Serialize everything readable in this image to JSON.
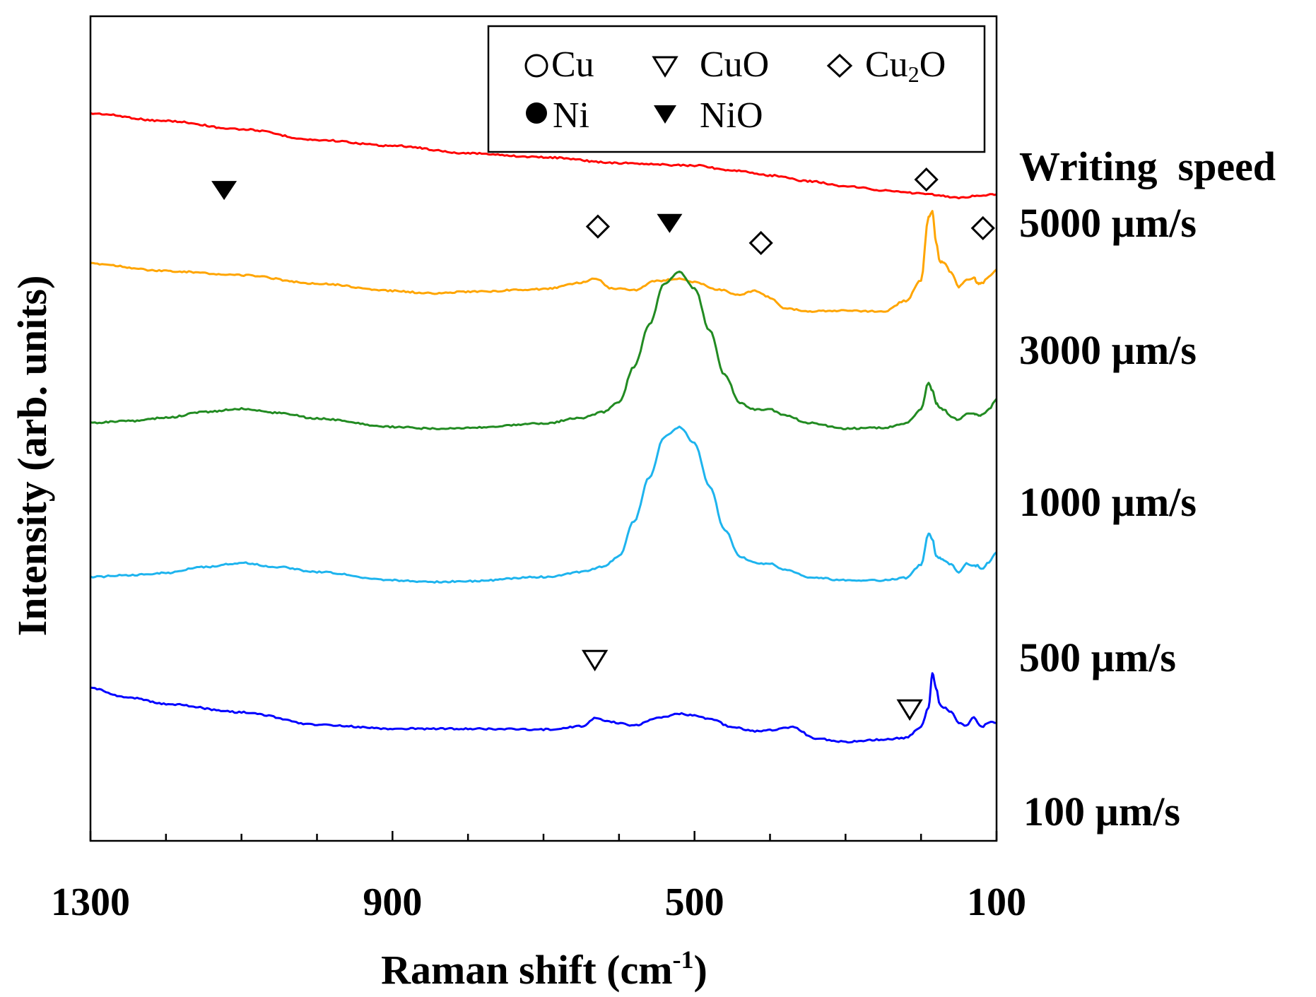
{
  "chart_data": {
    "type": "line",
    "title": "",
    "xlabel": "Raman shift (cm",
    "xlabel_sup": "-1",
    "xlabel_end": ")",
    "ylabel": "Intensity (arb. units)",
    "x_direction": "reversed",
    "xlim": [
      1300,
      100
    ],
    "xticks_major": [
      1300,
      900,
      500,
      100
    ],
    "xticks_major_labels": [
      "1300",
      "900",
      "500",
      "100"
    ],
    "xticks_minor": [
      1200,
      1100,
      1000,
      800,
      700,
      600,
      400,
      300,
      200
    ],
    "ylim": [
      0,
      100
    ],
    "yticks": false,
    "legend": {
      "placement": "top-right",
      "entries": [
        {
          "label": "Cu",
          "marker": "open-circle"
        },
        {
          "label": "CuO",
          "marker": "open-down-triangle"
        },
        {
          "label": "Cu",
          "sub": "2",
          "label_end": "O",
          "marker": "open-diamond"
        },
        {
          "label": "Ni",
          "marker": "filled-circle"
        },
        {
          "label": "NiO",
          "marker": "filled-down-triangle"
        }
      ]
    },
    "group_heading": "Writing  speed",
    "series": [
      {
        "name": "5000 µm/s",
        "color": "#ff0000",
        "x": [
          1300,
          1200,
          1100,
          1000,
          900,
          800,
          700,
          600,
          500,
          450,
          400,
          350,
          300,
          250,
          200,
          150,
          120,
          100
        ],
        "y": [
          88.2,
          87.3,
          86.3,
          85.0,
          84.3,
          83.4,
          82.9,
          82.2,
          81.9,
          81.3,
          80.7,
          80.0,
          79.4,
          78.9,
          78.5,
          78.0,
          78.3,
          78.4
        ]
      },
      {
        "name": "3000 µm/s",
        "color": "#ffa500",
        "x": [
          1300,
          1200,
          1100,
          1000,
          900,
          850,
          800,
          700,
          650,
          630,
          610,
          580,
          550,
          520,
          500,
          470,
          440,
          420,
          400,
          380,
          350,
          300,
          250,
          220,
          200,
          190,
          185,
          180,
          175,
          170,
          160,
          150,
          140,
          130,
          125,
          120,
          110,
          100
        ],
        "y": [
          70.0,
          69.1,
          68.6,
          67.6,
          66.7,
          66.4,
          66.6,
          66.9,
          67.7,
          68.2,
          67.0,
          66.8,
          67.9,
          68.2,
          67.8,
          66.9,
          66.2,
          66.7,
          65.9,
          64.6,
          64.2,
          64.3,
          64.2,
          65.5,
          68.0,
          75.7,
          76.3,
          72.5,
          70.2,
          70.2,
          68.9,
          67.2,
          68.0,
          68.3,
          67.6,
          67.6,
          68.4,
          69.3
        ]
      },
      {
        "name": "1000 µm/s",
        "color": "#228b22",
        "x": [
          1300,
          1250,
          1200,
          1150,
          1100,
          1050,
          1000,
          900,
          850,
          800,
          700,
          650,
          620,
          600,
          580,
          560,
          540,
          520,
          500,
          480,
          460,
          440,
          420,
          400,
          380,
          350,
          300,
          250,
          220,
          200,
          190,
          185,
          180,
          175,
          170,
          160,
          150,
          140,
          130,
          125,
          120,
          110,
          100
        ],
        "y": [
          50.7,
          50.9,
          51.3,
          52.0,
          52.4,
          51.9,
          51.2,
          50.2,
          50.0,
          50.1,
          50.6,
          51.3,
          52.0,
          53.2,
          57.5,
          62.6,
          67.6,
          69.0,
          67.0,
          61.9,
          56.5,
          53.1,
          52.3,
          52.3,
          51.6,
          50.7,
          50.0,
          50.1,
          50.6,
          52.3,
          55.6,
          54.6,
          53.1,
          52.6,
          52.3,
          51.5,
          51.0,
          51.8,
          51.8,
          51.6,
          51.6,
          52.3,
          53.6
        ]
      },
      {
        "name": "500 µm/s",
        "color": "#1eb4ee",
        "x": [
          1300,
          1250,
          1200,
          1150,
          1100,
          1050,
          1000,
          900,
          850,
          800,
          700,
          650,
          620,
          600,
          580,
          560,
          540,
          520,
          500,
          480,
          460,
          440,
          420,
          400,
          380,
          350,
          300,
          250,
          220,
          200,
          190,
          185,
          180,
          175,
          170,
          160,
          150,
          140,
          130,
          125,
          120,
          110,
          100
        ],
        "y": [
          32.0,
          32.2,
          32.5,
          33.2,
          33.7,
          33.2,
          32.6,
          31.6,
          31.4,
          31.5,
          32.0,
          32.6,
          33.3,
          34.5,
          38.8,
          44.0,
          49.0,
          50.2,
          48.2,
          43.0,
          37.7,
          34.5,
          33.7,
          33.6,
          32.9,
          32.0,
          31.6,
          31.6,
          31.9,
          33.5,
          37.3,
          36.6,
          34.6,
          34.3,
          34.0,
          33.5,
          32.6,
          33.6,
          33.3,
          33.4,
          33.0,
          33.8,
          35.0
        ]
      },
      {
        "name": "100 µm/s",
        "color": "#0000ff",
        "x": [
          1300,
          1250,
          1200,
          1100,
          1000,
          900,
          800,
          700,
          650,
          630,
          610,
          580,
          550,
          520,
          500,
          480,
          450,
          420,
          400,
          370,
          340,
          300,
          250,
          220,
          200,
          190,
          185,
          180,
          175,
          170,
          160,
          150,
          140,
          130,
          120,
          110,
          100
        ],
        "y": [
          18.5,
          17.4,
          16.6,
          15.6,
          14.1,
          13.6,
          13.6,
          13.5,
          13.9,
          14.9,
          14.4,
          14.0,
          14.9,
          15.4,
          15.2,
          14.8,
          13.8,
          13.3,
          13.4,
          13.8,
          12.4,
          12.0,
          12.3,
          12.5,
          13.8,
          16.2,
          20.3,
          18.5,
          16.5,
          16.2,
          15.6,
          14.3,
          14.0,
          15.0,
          13.8,
          14.4,
          14.3
        ]
      }
    ],
    "annotations": [
      {
        "series": "3000 µm/s",
        "marker": "filled-down-triangle",
        "x": 1123,
        "y": 79.0
      },
      {
        "series": "3000 µm/s",
        "marker": "open-diamond",
        "x": 628,
        "y": 74.5
      },
      {
        "series": "3000 µm/s",
        "marker": "filled-down-triangle",
        "x": 533,
        "y": 75.0
      },
      {
        "series": "3000 µm/s",
        "marker": "open-diamond",
        "x": 412,
        "y": 72.5
      },
      {
        "series": "3000 µm/s",
        "marker": "open-diamond",
        "x": 193,
        "y": 80.2
      },
      {
        "series": "3000 µm/s",
        "marker": "open-diamond",
        "x": 118,
        "y": 74.3
      },
      {
        "series": "100 µm/s",
        "marker": "open-down-triangle",
        "x": 632,
        "y": 22.0
      },
      {
        "series": "100 µm/s",
        "marker": "open-down-triangle",
        "x": 215,
        "y": 16.0
      }
    ]
  }
}
